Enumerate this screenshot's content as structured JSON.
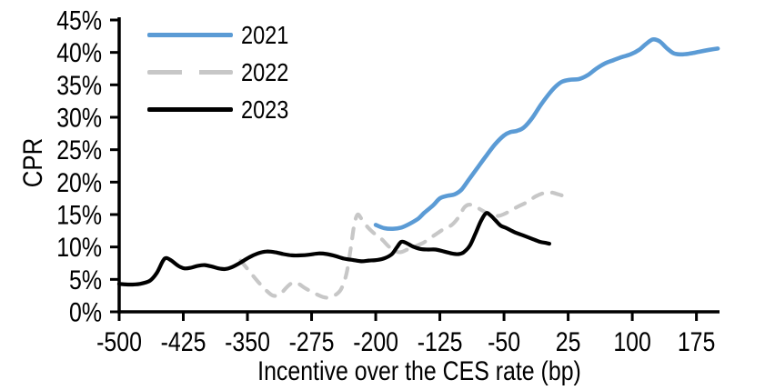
{
  "chart_data": {
    "type": "line",
    "title": "",
    "xlabel": "Incentive over the CES rate (bp)",
    "ylabel": "CPR",
    "xlim": [
      -500,
      202
    ],
    "ylim": [
      0,
      45
    ],
    "x_ticks": [
      -500,
      -425,
      -350,
      -275,
      -200,
      -125,
      -50,
      25,
      100,
      175
    ],
    "x_tick_labels": [
      "-500",
      "-425",
      "-350",
      "-275",
      "-200",
      "-125",
      "-50",
      "25",
      "100",
      "175"
    ],
    "y_ticks": [
      0,
      5,
      10,
      15,
      20,
      25,
      30,
      35,
      40,
      45
    ],
    "y_tick_labels": [
      "0%",
      "5%",
      "10%",
      "15%",
      "20%",
      "25%",
      "30%",
      "35%",
      "40%",
      "45%"
    ],
    "grid": false,
    "legend_position": "top-left-inside",
    "axis_color": "#000000",
    "series": [
      {
        "name": "2021",
        "color": "#5B9BD5",
        "style": "solid",
        "width": 4.6,
        "points": [
          [
            -200,
            13.4
          ],
          [
            -190,
            12.9
          ],
          [
            -180,
            12.8
          ],
          [
            -170,
            13.0
          ],
          [
            -160,
            13.6
          ],
          [
            -150,
            14.4
          ],
          [
            -143,
            15.3
          ],
          [
            -133,
            16.4
          ],
          [
            -125,
            17.5
          ],
          [
            -116,
            17.9
          ],
          [
            -108,
            18.1
          ],
          [
            -100,
            18.8
          ],
          [
            -90,
            20.6
          ],
          [
            -80,
            22.4
          ],
          [
            -70,
            24.2
          ],
          [
            -60,
            25.9
          ],
          [
            -50,
            27.2
          ],
          [
            -43,
            27.7
          ],
          [
            -35,
            27.9
          ],
          [
            -27,
            28.4
          ],
          [
            -17,
            29.9
          ],
          [
            -7,
            31.9
          ],
          [
            2,
            33.5
          ],
          [
            10,
            34.7
          ],
          [
            18,
            35.5
          ],
          [
            28,
            35.8
          ],
          [
            38,
            35.9
          ],
          [
            48,
            36.5
          ],
          [
            58,
            37.5
          ],
          [
            68,
            38.3
          ],
          [
            78,
            38.8
          ],
          [
            88,
            39.3
          ],
          [
            98,
            39.7
          ],
          [
            108,
            40.4
          ],
          [
            116,
            41.3
          ],
          [
            124,
            42.0
          ],
          [
            132,
            41.7
          ],
          [
            140,
            40.7
          ],
          [
            148,
            39.9
          ],
          [
            156,
            39.7
          ],
          [
            166,
            39.8
          ],
          [
            178,
            40.1
          ],
          [
            190,
            40.4
          ],
          [
            200,
            40.6
          ]
        ]
      },
      {
        "name": "2022",
        "color": "#C7C7C7",
        "style": "dashed",
        "width": 4.2,
        "points": [
          [
            -358,
            7.9
          ],
          [
            -348,
            6.3
          ],
          [
            -338,
            4.7
          ],
          [
            -328,
            3.3
          ],
          [
            -320,
            2.5
          ],
          [
            -312,
            2.7
          ],
          [
            -304,
            3.8
          ],
          [
            -297,
            4.5
          ],
          [
            -290,
            4.3
          ],
          [
            -282,
            3.6
          ],
          [
            -272,
            2.9
          ],
          [
            -262,
            2.3
          ],
          [
            -254,
            2.2
          ],
          [
            -246,
            2.7
          ],
          [
            -240,
            3.6
          ],
          [
            -234,
            6.0
          ],
          [
            -229,
            10.0
          ],
          [
            -225,
            13.5
          ],
          [
            -221,
            15.0
          ],
          [
            -216,
            14.2
          ],
          [
            -209,
            13.0
          ],
          [
            -201,
            12.0
          ],
          [
            -193,
            11.2
          ],
          [
            -185,
            10.1
          ],
          [
            -178,
            9.4
          ],
          [
            -171,
            9.2
          ],
          [
            -163,
            9.6
          ],
          [
            -154,
            10.1
          ],
          [
            -145,
            10.6
          ],
          [
            -136,
            11.4
          ],
          [
            -127,
            12.2
          ],
          [
            -119,
            12.9
          ],
          [
            -111,
            13.4
          ],
          [
            -103,
            14.6
          ],
          [
            -97,
            16.0
          ],
          [
            -92,
            16.5
          ],
          [
            -86,
            16.4
          ],
          [
            -79,
            15.9
          ],
          [
            -71,
            15.3
          ],
          [
            -63,
            14.9
          ],
          [
            -56,
            14.8
          ],
          [
            -48,
            15.2
          ],
          [
            -40,
            15.8
          ],
          [
            -31,
            16.4
          ],
          [
            -22,
            17.0
          ],
          [
            -13,
            17.8
          ],
          [
            -4,
            18.3
          ],
          [
            5,
            18.4
          ],
          [
            14,
            18.1
          ],
          [
            23,
            17.7
          ]
        ]
      },
      {
        "name": "2023",
        "color": "#000000",
        "style": "solid",
        "width": 4.2,
        "points": [
          [
            -500,
            4.3
          ],
          [
            -488,
            4.2
          ],
          [
            -476,
            4.3
          ],
          [
            -464,
            4.8
          ],
          [
            -456,
            6.0
          ],
          [
            -449,
            7.8
          ],
          [
            -445,
            8.3
          ],
          [
            -439,
            7.9
          ],
          [
            -431,
            7.1
          ],
          [
            -424,
            6.7
          ],
          [
            -416,
            6.8
          ],
          [
            -408,
            7.1
          ],
          [
            -400,
            7.2
          ],
          [
            -392,
            7.0
          ],
          [
            -384,
            6.7
          ],
          [
            -376,
            6.6
          ],
          [
            -368,
            6.9
          ],
          [
            -358,
            7.6
          ],
          [
            -348,
            8.4
          ],
          [
            -338,
            9.0
          ],
          [
            -328,
            9.3
          ],
          [
            -318,
            9.2
          ],
          [
            -308,
            8.9
          ],
          [
            -298,
            8.7
          ],
          [
            -288,
            8.7
          ],
          [
            -278,
            8.8
          ],
          [
            -267,
            9.0
          ],
          [
            -257,
            8.9
          ],
          [
            -247,
            8.6
          ],
          [
            -237,
            8.2
          ],
          [
            -227,
            8.0
          ],
          [
            -217,
            7.8
          ],
          [
            -208,
            7.9
          ],
          [
            -198,
            8.0
          ],
          [
            -189,
            8.3
          ],
          [
            -181,
            8.9
          ],
          [
            -175,
            10.0
          ],
          [
            -170,
            10.8
          ],
          [
            -164,
            10.6
          ],
          [
            -157,
            10.1
          ],
          [
            -148,
            9.7
          ],
          [
            -139,
            9.6
          ],
          [
            -130,
            9.6
          ],
          [
            -120,
            9.3
          ],
          [
            -111,
            9.0
          ],
          [
            -103,
            8.9
          ],
          [
            -97,
            9.2
          ],
          [
            -90,
            10.2
          ],
          [
            -83,
            12.2
          ],
          [
            -77,
            14.0
          ],
          [
            -71,
            15.2
          ],
          [
            -66,
            14.9
          ],
          [
            -60,
            14.1
          ],
          [
            -54,
            13.3
          ],
          [
            -47,
            12.9
          ],
          [
            -38,
            12.3
          ],
          [
            -28,
            11.8
          ],
          [
            -18,
            11.3
          ],
          [
            -8,
            10.8
          ],
          [
            0,
            10.6
          ],
          [
            3,
            10.5
          ]
        ]
      }
    ]
  }
}
